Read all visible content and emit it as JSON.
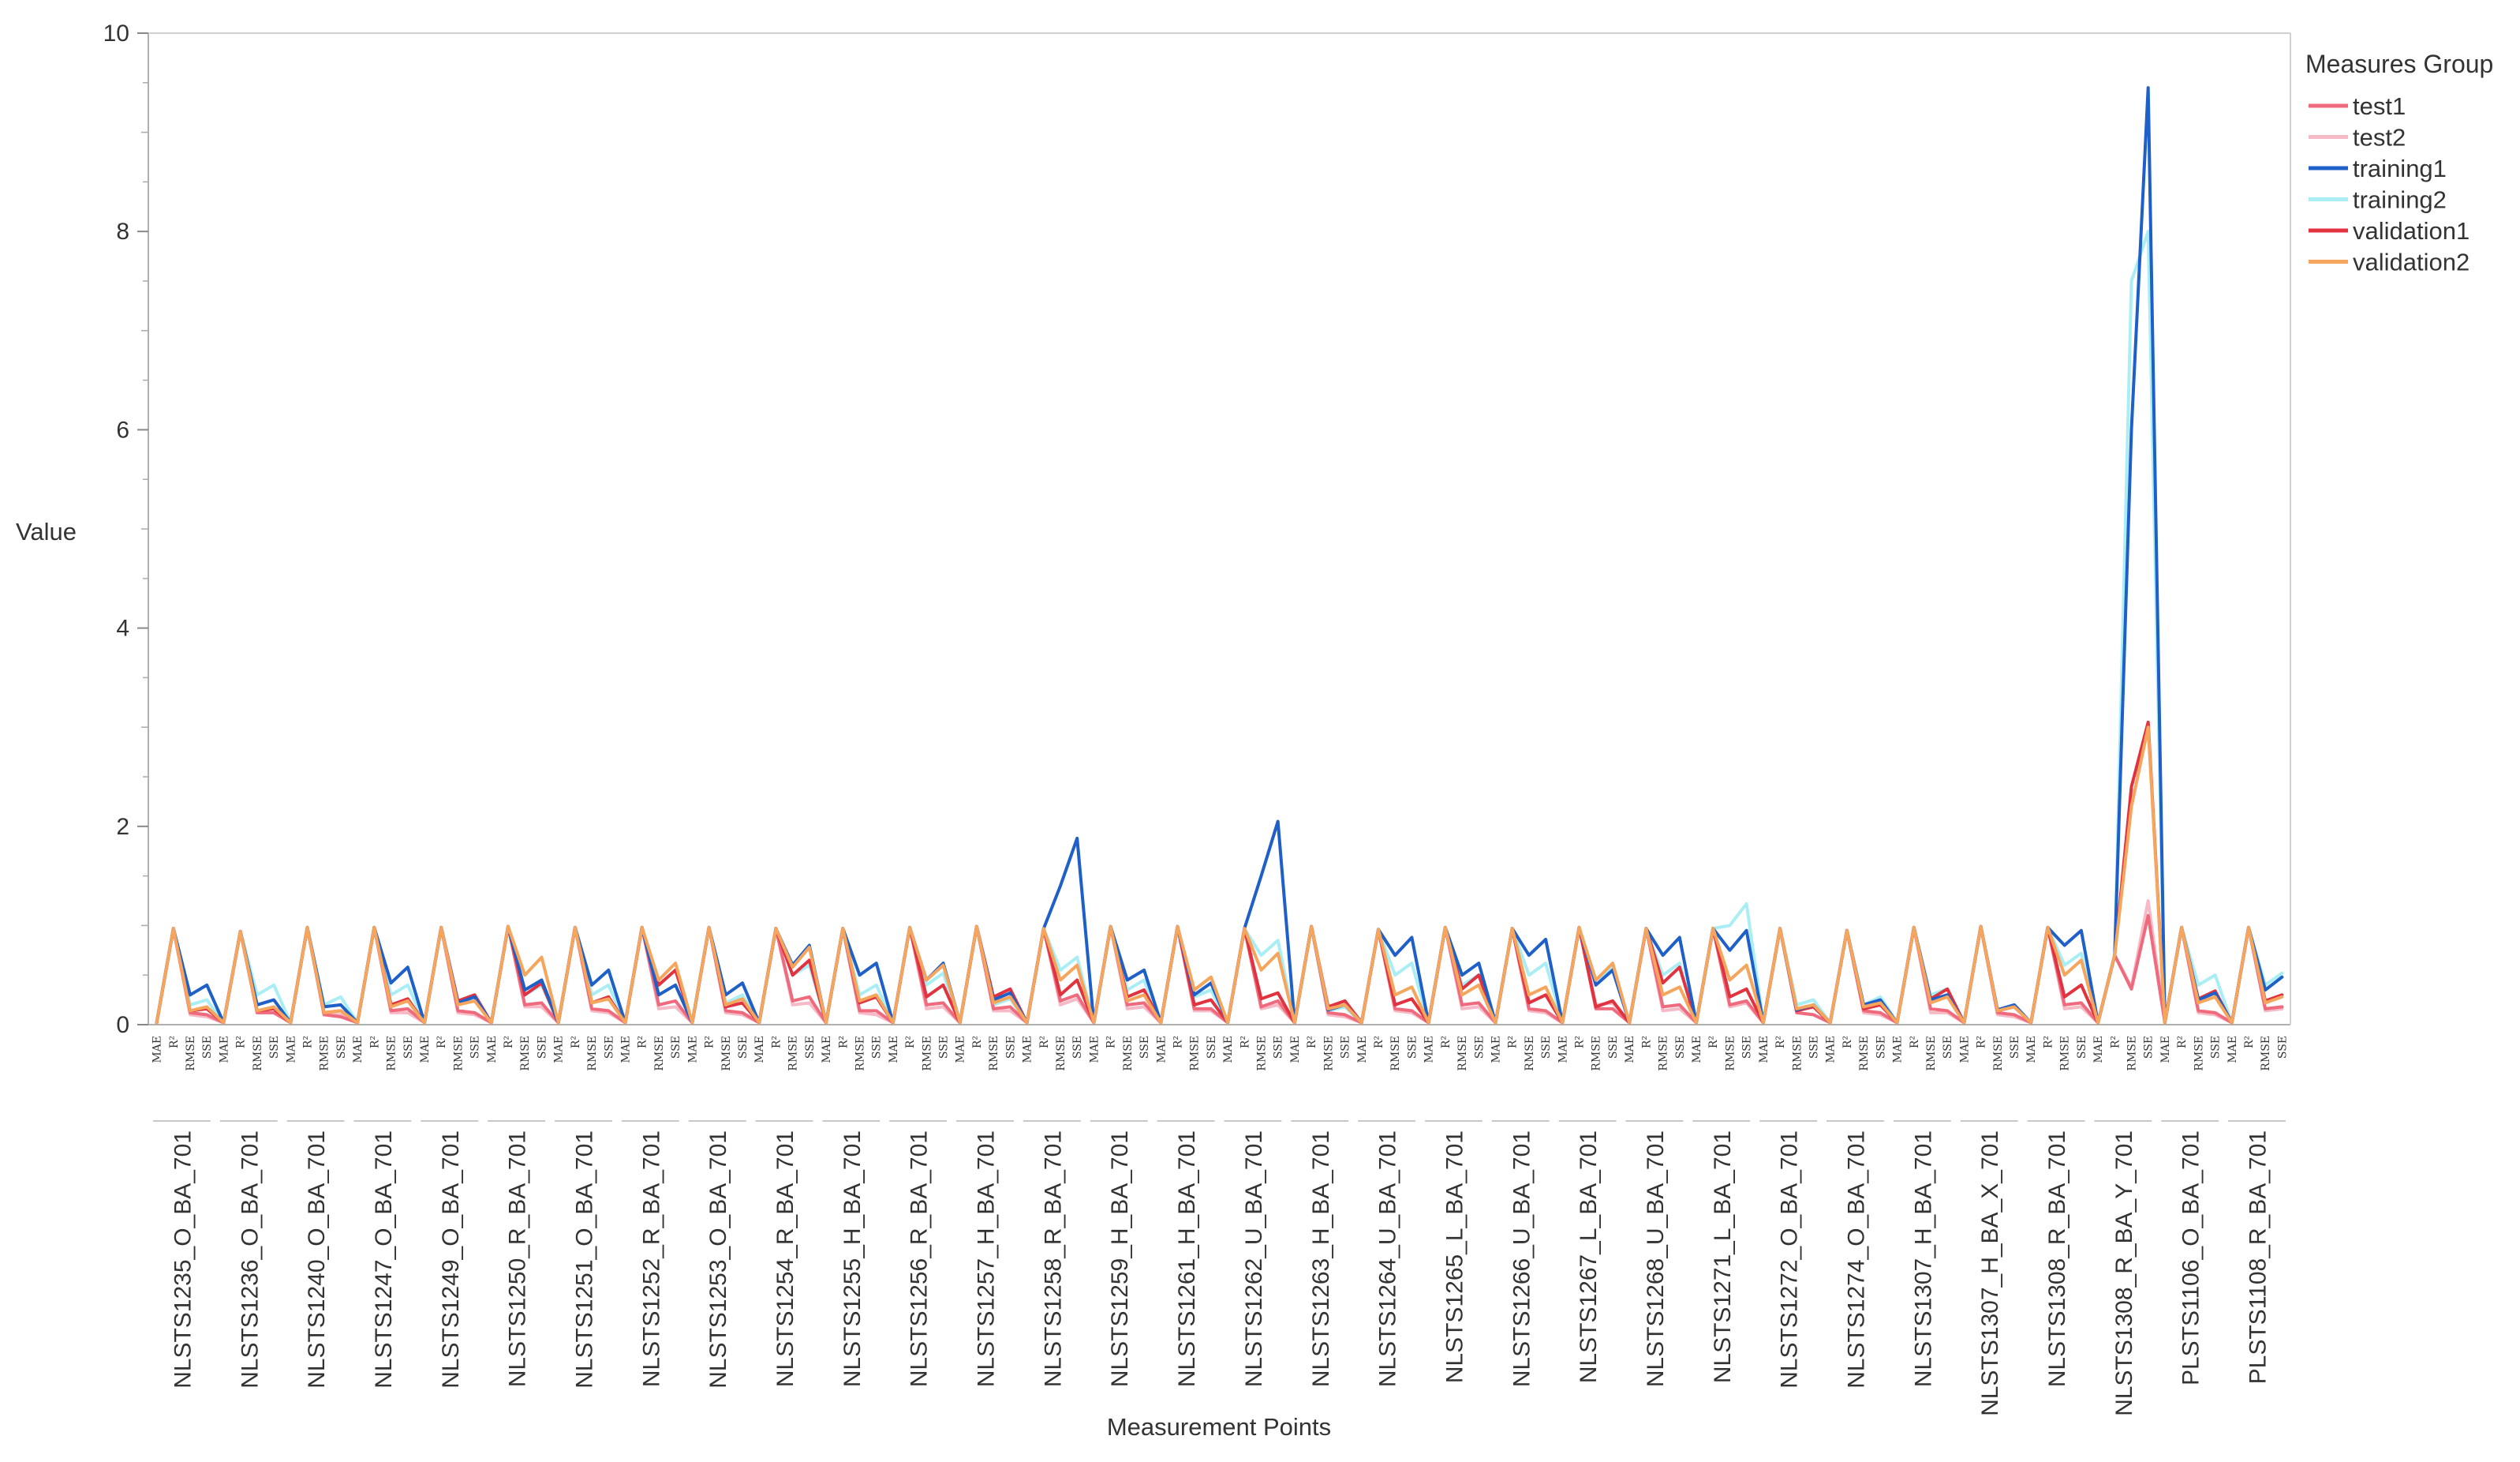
{
  "chart_data": {
    "type": "line",
    "title": "",
    "xlabel": "Measurement Points",
    "ylabel": "Value",
    "ylim": [
      0,
      10
    ],
    "yticks": [
      0,
      2,
      4,
      6,
      8,
      10
    ],
    "grid": false,
    "legend_position": "right",
    "legend_title": "Measures Group",
    "metrics": [
      "MAE",
      "R²",
      "RMSE",
      "SSE"
    ],
    "groups": [
      "NLSTS1235_O_BA_701",
      "NLSTS1236_O_BA_701",
      "NLSTS1240_O_BA_701",
      "NLSTS1247_O_BA_701",
      "NLSTS1249_O_BA_701",
      "NLSTS1250_R_BA_701",
      "NLSTS1251_O_BA_701",
      "NLSTS1252_R_BA_701",
      "NLSTS1253_O_BA_701",
      "NLSTS1254_R_BA_701",
      "NLSTS1255_H_BA_701",
      "NLSTS1256_R_BA_701",
      "NLSTS1257_H_BA_701",
      "NLSTS1258_R_BA_701",
      "NLSTS1259_H_BA_701",
      "NLSTS1261_H_BA_701",
      "NLSTS1262_U_BA_701",
      "NLSTS1263_H_BA_701",
      "NLSTS1264_U_BA_701",
      "NLSTS1265_L_BA_701",
      "NLSTS1266_U_BA_701",
      "NLSTS1267_L_BA_701",
      "NLSTS1268_U_BA_701",
      "NLSTS1271_L_BA_701",
      "NLSTS1272_O_BA_701",
      "NLSTS1274_O_BA_701",
      "NLSTS1307_H_BA_701",
      "NLSTS1307_H_BA_X_701",
      "NLSTS1308_R_BA_701",
      "NLSTS1308_R_BA_Y_701",
      "PLSTS1106_O_BA_701",
      "PLSTS1108_R_BA_701"
    ],
    "series": [
      {
        "name": "test1",
        "color": "#f06a7e",
        "rmse": [
          0.12,
          0.12,
          0.1,
          0.14,
          0.14,
          0.2,
          0.16,
          0.2,
          0.14,
          0.24,
          0.14,
          0.2,
          0.16,
          0.24,
          0.2,
          0.16,
          0.18,
          0.12,
          0.16,
          0.2,
          0.16,
          0.16,
          0.18,
          0.2,
          0.12,
          0.14,
          0.16,
          0.12,
          0.2,
          0.36,
          0.14,
          0.16
        ],
        "sse": [
          0.1,
          0.12,
          0.08,
          0.16,
          0.12,
          0.22,
          0.14,
          0.24,
          0.12,
          0.28,
          0.14,
          0.22,
          0.18,
          0.3,
          0.22,
          0.16,
          0.24,
          0.1,
          0.14,
          0.22,
          0.14,
          0.16,
          0.2,
          0.24,
          0.1,
          0.12,
          0.14,
          0.1,
          0.22,
          1.1,
          0.12,
          0.18
        ]
      },
      {
        "name": "test2",
        "color": "#f6b9c6",
        "rmse": [
          0.1,
          0.14,
          0.1,
          0.12,
          0.12,
          0.18,
          0.14,
          0.16,
          0.12,
          0.2,
          0.12,
          0.16,
          0.14,
          0.2,
          0.16,
          0.14,
          0.16,
          0.1,
          0.14,
          0.16,
          0.14,
          0.2,
          0.14,
          0.18,
          0.12,
          0.12,
          0.12,
          0.1,
          0.16,
          0.38,
          0.12,
          0.14
        ],
        "sse": [
          0.08,
          0.16,
          0.1,
          0.12,
          0.1,
          0.18,
          0.12,
          0.18,
          0.1,
          0.22,
          0.1,
          0.18,
          0.14,
          0.26,
          0.18,
          0.14,
          0.2,
          0.08,
          0.12,
          0.18,
          0.12,
          0.22,
          0.16,
          0.22,
          0.1,
          0.1,
          0.12,
          0.08,
          0.18,
          1.25,
          0.1,
          0.16
        ]
      },
      {
        "name": "training1",
        "color": "#1f5fc8",
        "rmse": [
          0.3,
          0.2,
          0.18,
          0.42,
          0.22,
          0.35,
          0.4,
          0.3,
          0.3,
          0.6,
          0.5,
          0.45,
          0.25,
          1.4,
          0.45,
          0.3,
          1.5,
          0.15,
          0.7,
          0.5,
          0.7,
          0.4,
          0.7,
          0.75,
          0.15,
          0.2,
          0.25,
          0.15,
          0.8,
          6.0,
          0.25,
          0.35
        ],
        "sse": [
          0.4,
          0.25,
          0.2,
          0.58,
          0.28,
          0.45,
          0.55,
          0.4,
          0.42,
          0.8,
          0.62,
          0.62,
          0.32,
          1.88,
          0.55,
          0.42,
          2.05,
          0.2,
          0.88,
          0.62,
          0.86,
          0.55,
          0.88,
          0.95,
          0.2,
          0.25,
          0.3,
          0.2,
          0.95,
          9.45,
          0.32,
          0.48
        ]
      },
      {
        "name": "training2",
        "color": "#a9eef5",
        "rmse": [
          0.2,
          0.3,
          0.2,
          0.3,
          0.2,
          0.3,
          0.3,
          0.3,
          0.22,
          0.5,
          0.3,
          0.4,
          0.2,
          0.55,
          0.35,
          0.28,
          0.7,
          0.14,
          0.5,
          0.4,
          0.5,
          0.45,
          0.5,
          1.0,
          0.2,
          0.2,
          0.3,
          0.14,
          0.6,
          7.5,
          0.4,
          0.4
        ],
        "sse": [
          0.25,
          0.4,
          0.28,
          0.4,
          0.25,
          0.4,
          0.4,
          0.4,
          0.3,
          0.6,
          0.4,
          0.52,
          0.26,
          0.68,
          0.45,
          0.35,
          0.85,
          0.18,
          0.62,
          0.5,
          0.62,
          0.58,
          0.62,
          1.22,
          0.25,
          0.28,
          0.36,
          0.18,
          0.72,
          8.0,
          0.5,
          0.52
        ]
      },
      {
        "name": "validation1",
        "color": "#e0323f",
        "rmse": [
          0.14,
          0.14,
          0.12,
          0.2,
          0.24,
          0.3,
          0.22,
          0.4,
          0.18,
          0.5,
          0.22,
          0.28,
          0.28,
          0.3,
          0.28,
          0.2,
          0.26,
          0.18,
          0.2,
          0.36,
          0.22,
          0.18,
          0.42,
          0.28,
          0.14,
          0.16,
          0.26,
          0.14,
          0.28,
          2.4,
          0.26,
          0.24
        ],
        "sse": [
          0.16,
          0.16,
          0.14,
          0.26,
          0.3,
          0.42,
          0.28,
          0.55,
          0.22,
          0.65,
          0.28,
          0.4,
          0.36,
          0.45,
          0.35,
          0.25,
          0.32,
          0.24,
          0.26,
          0.5,
          0.3,
          0.24,
          0.58,
          0.36,
          0.18,
          0.2,
          0.36,
          0.18,
          0.4,
          3.05,
          0.34,
          0.3
        ]
      },
      {
        "name": "validation2",
        "color": "#f5a55c",
        "rmse": [
          0.14,
          0.14,
          0.12,
          0.18,
          0.2,
          0.5,
          0.22,
          0.45,
          0.2,
          0.58,
          0.24,
          0.45,
          0.22,
          0.45,
          0.24,
          0.35,
          0.55,
          0.16,
          0.3,
          0.3,
          0.3,
          0.45,
          0.3,
          0.45,
          0.16,
          0.18,
          0.22,
          0.14,
          0.5,
          2.2,
          0.22,
          0.22
        ],
        "sse": [
          0.18,
          0.18,
          0.14,
          0.24,
          0.24,
          0.68,
          0.26,
          0.62,
          0.26,
          0.78,
          0.3,
          0.6,
          0.28,
          0.6,
          0.3,
          0.48,
          0.72,
          0.2,
          0.38,
          0.4,
          0.38,
          0.62,
          0.38,
          0.6,
          0.2,
          0.22,
          0.28,
          0.18,
          0.65,
          3.0,
          0.28,
          0.28
        ]
      }
    ],
    "mae": [
      0.02,
      0.02,
      0.02,
      0.02,
      0.02,
      0.02,
      0.02,
      0.02,
      0.02,
      0.02,
      0.02,
      0.02,
      0.02,
      0.02,
      0.02,
      0.02,
      0.02,
      0.02,
      0.02,
      0.02,
      0.02,
      0.02,
      0.02,
      0.02,
      0.02,
      0.02,
      0.02,
      0.02,
      0.02,
      0.02,
      0.02,
      0.02
    ],
    "r2": [
      0.97,
      0.94,
      0.98,
      0.98,
      0.98,
      0.99,
      0.98,
      0.98,
      0.98,
      0.97,
      0.97,
      0.98,
      0.99,
      0.97,
      0.99,
      0.99,
      0.97,
      0.99,
      0.96,
      0.98,
      0.97,
      0.98,
      0.97,
      0.97,
      0.97,
      0.95,
      0.98,
      0.99,
      0.98,
      0.7,
      0.98,
      0.98
    ]
  }
}
